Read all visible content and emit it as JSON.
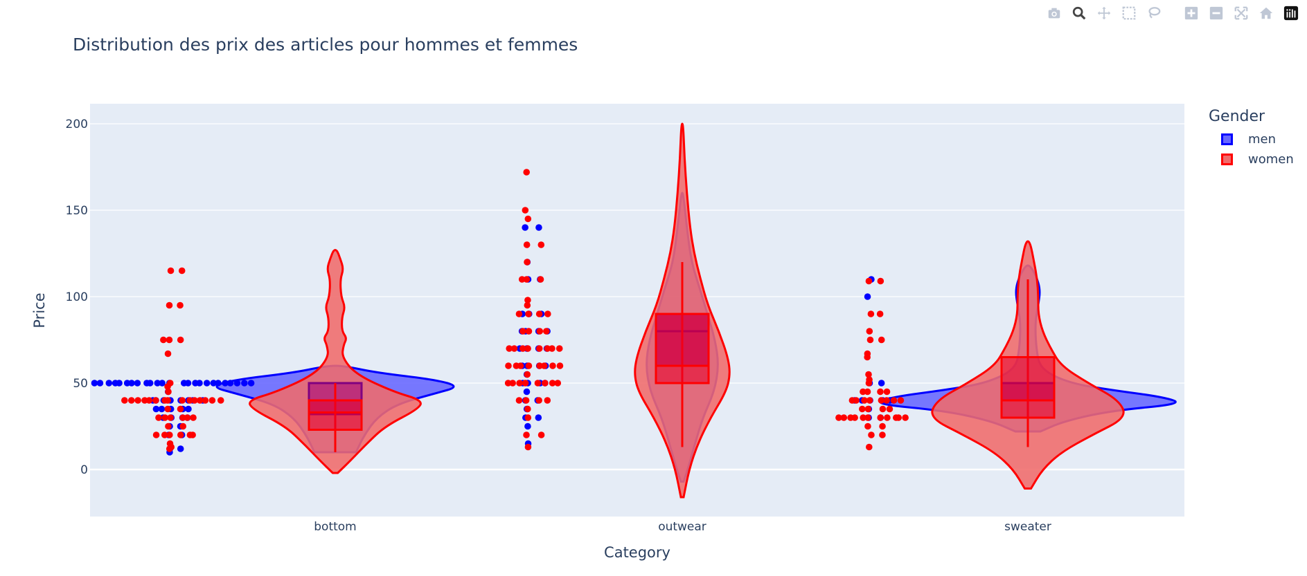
{
  "chart_data": {
    "type": "violin",
    "title": "Distribution des prix des articles pour hommes et femmes",
    "xlabel": "Category",
    "ylabel": "Price",
    "categories": [
      "bottom",
      "outwear",
      "sweater"
    ],
    "ylim": [
      -28,
      200
    ],
    "yticks": [
      0,
      50,
      100,
      150,
      200
    ],
    "legend_title": "Gender",
    "legend_position": "top-right",
    "grid": true,
    "series": [
      {
        "name": "men",
        "color": "#0000ff",
        "fill": "#6666ff",
        "violins": {
          "bottom": {
            "ymin": 10,
            "ymax": 60,
            "ylo": 10,
            "yhi": 60,
            "profile": [
              [
                10,
                0.25
              ],
              [
                20,
                0.35
              ],
              [
                30,
                0.5
              ],
              [
                38,
                0.75
              ],
              [
                44,
                1.2
              ],
              [
                48,
                1.5
              ],
              [
                52,
                1.2
              ],
              [
                56,
                0.5
              ],
              [
                60,
                0.1
              ]
            ],
            "points": [
              10,
              12,
              12,
              20,
              20,
              25,
              25,
              30,
              30,
              30,
              30,
              35,
              35,
              35,
              35,
              35,
              40,
              40,
              40,
              40,
              40,
              40,
              40,
              40,
              45,
              50,
              50,
              50,
              50,
              50,
              50,
              50,
              50,
              50,
              50,
              50,
              50,
              50,
              50,
              50,
              50,
              50,
              50,
              50,
              50,
              50,
              50,
              50,
              50,
              50
            ]
          },
          "outwear": {
            "ymin": -7,
            "ymax": 160,
            "ylo": -7,
            "yhi": 160,
            "profile": [
              [
                -7,
                0.03
              ],
              [
                0,
                0.12
              ],
              [
                15,
                0.28
              ],
              [
                30,
                0.45
              ],
              [
                45,
                0.7
              ],
              [
                60,
                0.8
              ],
              [
                75,
                0.72
              ],
              [
                90,
                0.55
              ],
              [
                105,
                0.38
              ],
              [
                120,
                0.2
              ],
              [
                140,
                0.1
              ],
              [
                160,
                0.02
              ]
            ],
            "points": [
              15,
              25,
              30,
              30,
              35,
              40,
              40,
              45,
              50,
              50,
              50,
              50,
              55,
              60,
              60,
              60,
              60,
              70,
              70,
              70,
              70,
              80,
              80,
              80,
              80,
              90,
              90,
              90,
              110,
              110,
              120,
              140,
              140
            ]
          },
          "sweater": {
            "ymin": 22,
            "ymax": 118,
            "ylo": 22,
            "yhi": 118,
            "profile": [
              [
                22,
                0.12
              ],
              [
                28,
                0.35
              ],
              [
                34,
                0.8
              ],
              [
                38,
                1.5
              ],
              [
                42,
                1.3
              ],
              [
                46,
                0.8
              ],
              [
                50,
                0.4
              ],
              [
                58,
                0.12
              ],
              [
                70,
                0.08
              ],
              [
                85,
                0.07
              ],
              [
                95,
                0.1
              ],
              [
                104,
                0.12
              ],
              [
                112,
                0.08
              ],
              [
                118,
                0.02
              ]
            ],
            "points": [
              30,
              30,
              35,
              40,
              40,
              40,
              40,
              40,
              40,
              50,
              50,
              100,
              110
            ]
          }
        }
      },
      {
        "name": "women",
        "color": "#ff0000",
        "fill": "#f06b6b",
        "violins": {
          "bottom": {
            "ymin": -2,
            "ymax": 127,
            "ylo": -2,
            "yhi": 127,
            "profile": [
              [
                -2,
                0.03
              ],
              [
                5,
                0.18
              ],
              [
                15,
                0.38
              ],
              [
                25,
                0.6
              ],
              [
                35,
                1.0
              ],
              [
                40,
                1.05
              ],
              [
                45,
                0.7
              ],
              [
                55,
                0.25
              ],
              [
                65,
                0.08
              ],
              [
                72,
                0.1
              ],
              [
                76,
                0.14
              ],
              [
                80,
                0.08
              ],
              [
                88,
                0.08
              ],
              [
                94,
                0.12
              ],
              [
                100,
                0.07
              ],
              [
                110,
                0.06
              ],
              [
                116,
                0.1
              ],
              [
                122,
                0.06
              ],
              [
                127,
                0.02
              ]
            ],
            "points": [
              12,
              13,
              15,
              20,
              20,
              20,
              20,
              20,
              20,
              25,
              25,
              30,
              30,
              30,
              30,
              30,
              30,
              35,
              35,
              40,
              40,
              40,
              40,
              40,
              40,
              40,
              40,
              40,
              40,
              40,
              40,
              40,
              40,
              40,
              45,
              48,
              50,
              67,
              75,
              75,
              75,
              95,
              95,
              115,
              115
            ]
          },
          "outwear": {
            "ymin": -16,
            "ymax": 200,
            "ylo": -16,
            "yhi": 200,
            "profile": [
              [
                -16,
                0.03
              ],
              [
                0,
                0.15
              ],
              [
                15,
                0.34
              ],
              [
                30,
                0.62
              ],
              [
                45,
                0.96
              ],
              [
                55,
                1.05
              ],
              [
                65,
                1.0
              ],
              [
                80,
                0.8
              ],
              [
                95,
                0.56
              ],
              [
                110,
                0.4
              ],
              [
                125,
                0.26
              ],
              [
                140,
                0.17
              ],
              [
                160,
                0.1
              ],
              [
                180,
                0.05
              ],
              [
                200,
                0.02
              ]
            ],
            "points": [
              13,
              20,
              20,
              30,
              35,
              40,
              40,
              40,
              40,
              50,
              50,
              50,
              50,
              50,
              50,
              50,
              50,
              55,
              60,
              60,
              60,
              60,
              60,
              60,
              60,
              60,
              70,
              70,
              70,
              70,
              70,
              70,
              70,
              70,
              80,
              80,
              80,
              80,
              90,
              90,
              90,
              90,
              95,
              98,
              110,
              110,
              110,
              120,
              130,
              130,
              145,
              150,
              172
            ]
          },
          "sweater": {
            "ymin": -11,
            "ymax": 132,
            "ylo": -11,
            "yhi": 132,
            "profile": [
              [
                -11,
                0.03
              ],
              [
                0,
                0.14
              ],
              [
                10,
                0.32
              ],
              [
                20,
                0.62
              ],
              [
                30,
                0.95
              ],
              [
                40,
                0.88
              ],
              [
                50,
                0.58
              ],
              [
                60,
                0.32
              ],
              [
                70,
                0.22
              ],
              [
                80,
                0.14
              ],
              [
                90,
                0.1
              ],
              [
                100,
                0.1
              ],
              [
                110,
                0.09
              ],
              [
                120,
                0.06
              ],
              [
                132,
                0.02
              ]
            ],
            "points": [
              13,
              20,
              20,
              25,
              25,
              30,
              30,
              30,
              30,
              30,
              30,
              30,
              30,
              30,
              30,
              30,
              35,
              35,
              35,
              35,
              40,
              40,
              40,
              40,
              40,
              40,
              40,
              40,
              45,
              45,
              45,
              45,
              50,
              52,
              55,
              65,
              67,
              75,
              75,
              80,
              90,
              90,
              109,
              109
            ]
          }
        }
      }
    ],
    "boxes": {
      "men": {
        "bottom": {
          "q1": 32,
          "median": 40,
          "q3": 50
        },
        "outwear": {
          "q1": 60,
          "median": 80,
          "q3": 90
        },
        "sweater": {
          "q1": 40,
          "median": 40,
          "q3": 50
        }
      },
      "women": {
        "bottom": {
          "q1": 23,
          "median": 33,
          "q3": 40,
          "lower": 10,
          "upper": 50
        },
        "outwear": {
          "q1": 50,
          "median": 60,
          "q3": 90,
          "lower": 13,
          "upper": 120
        },
        "sweater": {
          "q1": 30,
          "median": 40,
          "q3": 65,
          "lower": 13,
          "upper": 110
        }
      }
    }
  },
  "modebar": [
    "camera-icon",
    "zoom-icon",
    "pan-icon",
    "box-select-icon",
    "lasso-select-icon",
    "zoom-in-icon",
    "zoom-out-icon",
    "autoscale-icon",
    "reset-axes-icon",
    "plotly-logo-icon"
  ]
}
